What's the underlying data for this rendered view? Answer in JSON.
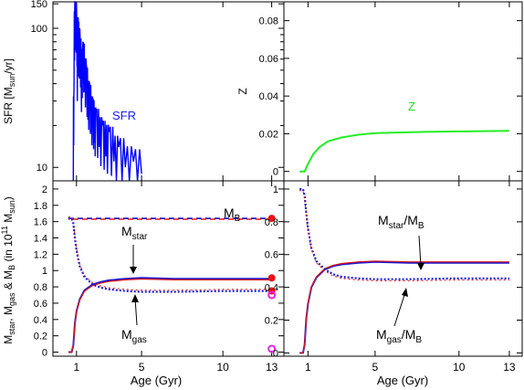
{
  "figure": {
    "shared_xlabel": "Age (Gyr)",
    "x_ticks_bottom": [
      "1",
      "5",
      "10",
      "13"
    ]
  },
  "chart_data": [
    {
      "panel": "top-left",
      "type": "line",
      "ylabel": "SFR [Msun/yr]",
      "yscale": "log",
      "ylim": [
        8,
        155
      ],
      "y_ticks": [
        "150",
        "100",
        "10"
      ],
      "annotations": [
        {
          "text": "SFR",
          "color": "#1818ff"
        }
      ],
      "series": [
        {
          "name": "SFR",
          "color": "#0000ff",
          "note_x": "x in Gyr, y in Msun/yr (spiky burst-like history)",
          "x": [
            0.8,
            0.85,
            0.9,
            0.95,
            1.0,
            1.05,
            1.1,
            1.15,
            1.2,
            1.3,
            1.4,
            1.5,
            1.6,
            1.7,
            1.8,
            1.9,
            2.0,
            2.1,
            2.2,
            2.4,
            2.6,
            2.8,
            3.0,
            3.3,
            3.6,
            4.0,
            4.5,
            5.0
          ],
          "y": [
            8,
            40,
            155,
            75,
            148,
            30,
            120,
            45,
            100,
            25,
            80,
            35,
            55,
            22,
            40,
            18,
            30,
            15,
            25,
            14,
            20,
            12,
            18,
            11,
            14,
            10,
            11,
            9
          ]
        }
      ]
    },
    {
      "panel": "top-right",
      "type": "line",
      "ylabel": "Z",
      "ylim": [
        -0.005,
        0.09
      ],
      "y_ticks": [
        "0",
        "0.02",
        "0.04",
        "0.06",
        "0.08"
      ],
      "annotations": [
        {
          "text": "Z",
          "color": "#22dd22"
        }
      ],
      "series": [
        {
          "name": "Z",
          "color": "#22ee22",
          "x": [
            0.5,
            0.8,
            1.0,
            1.3,
            1.7,
            2.2,
            3.0,
            4.0,
            5.0,
            6.0,
            8.0,
            10.0,
            13.0
          ],
          "y": [
            0.0,
            0.0,
            0.004,
            0.009,
            0.013,
            0.016,
            0.018,
            0.0195,
            0.0203,
            0.0206,
            0.021,
            0.0212,
            0.0215
          ]
        }
      ]
    },
    {
      "panel": "bottom-left",
      "type": "line",
      "ylabel": "Mstar, Mgas & MB (in 10^11 Msun)",
      "xlabel": "Age (Gyr)",
      "ylim": [
        -0.05,
        2.1
      ],
      "y_ticks": [
        "0",
        "0.2",
        "0.4",
        "0.6",
        "0.8",
        "1",
        "1.2",
        "1.4",
        "1.6",
        "1.8",
        "2"
      ],
      "annotations": [
        {
          "text": "MB",
          "points_to": "baryonic mass"
        },
        {
          "text": "Mstar",
          "points_to": "stellar mass"
        },
        {
          "text": "Mgas",
          "points_to": "gas mass"
        }
      ],
      "series": [
        {
          "name": "MB",
          "style": "dashed",
          "x": [
            0.5,
            13.0
          ],
          "y": [
            1.64,
            1.64
          ]
        },
        {
          "name": "Mstar",
          "style": "solid",
          "x": [
            0.5,
            0.7,
            0.8,
            0.9,
            1.0,
            1.2,
            1.5,
            2.0,
            2.5,
            3.0,
            4.0,
            5.0,
            7.0,
            10.0,
            13.0
          ],
          "y": [
            0.0,
            0.0,
            0.08,
            0.35,
            0.5,
            0.65,
            0.76,
            0.83,
            0.86,
            0.88,
            0.9,
            0.91,
            0.9,
            0.9,
            0.9
          ]
        },
        {
          "name": "Mgas",
          "style": "dotted",
          "x": [
            0.5,
            0.7,
            0.8,
            0.9,
            1.0,
            1.2,
            1.5,
            2.0,
            2.5,
            3.0,
            4.0,
            5.0,
            7.0,
            10.0,
            13.0
          ],
          "y": [
            1.64,
            1.64,
            1.58,
            1.4,
            1.25,
            1.05,
            0.92,
            0.83,
            0.79,
            0.77,
            0.75,
            0.74,
            0.74,
            0.75,
            0.75
          ]
        }
      ],
      "markers_at_13Gyr": [
        {
          "y": 1.64,
          "style": "filled",
          "color": "#ee1111"
        },
        {
          "y": 0.91,
          "style": "filled",
          "color": "#ee1111"
        },
        {
          "y": 0.75,
          "style": "filled",
          "color": "#ee1111"
        },
        {
          "y": 0.7,
          "style": "open",
          "color": "#ee22ee"
        },
        {
          "y": 0.04,
          "style": "open",
          "color": "#ee22ee"
        }
      ]
    },
    {
      "panel": "bottom-right",
      "type": "line",
      "xlabel": "Age (Gyr)",
      "ylim": [
        -0.02,
        1.05
      ],
      "y_ticks": [
        "0",
        "0.2",
        "0.4",
        "0.6",
        "0.8",
        "1"
      ],
      "annotations": [
        {
          "text": "Mstar/MB",
          "points_to": "stellar fraction"
        },
        {
          "text": "Mgas/MB",
          "points_to": "gas fraction"
        }
      ],
      "series": [
        {
          "name": "Mstar/MB",
          "style": "solid",
          "x": [
            0.5,
            0.7,
            0.8,
            0.9,
            1.0,
            1.2,
            1.5,
            2.0,
            2.5,
            3.0,
            4.0,
            5.0,
            7.0,
            10.0,
            13.0
          ],
          "y": [
            0.0,
            0.0,
            0.05,
            0.21,
            0.3,
            0.4,
            0.46,
            0.51,
            0.53,
            0.54,
            0.55,
            0.555,
            0.55,
            0.55,
            0.55
          ]
        },
        {
          "name": "Mgas/MB",
          "style": "dotted",
          "x": [
            0.5,
            0.7,
            0.8,
            0.9,
            1.0,
            1.2,
            1.5,
            2.0,
            2.5,
            3.0,
            4.0,
            5.0,
            7.0,
            10.0,
            13.0
          ],
          "y": [
            1.0,
            1.0,
            0.96,
            0.85,
            0.76,
            0.64,
            0.56,
            0.51,
            0.48,
            0.465,
            0.455,
            0.45,
            0.45,
            0.455,
            0.455
          ]
        }
      ]
    }
  ]
}
